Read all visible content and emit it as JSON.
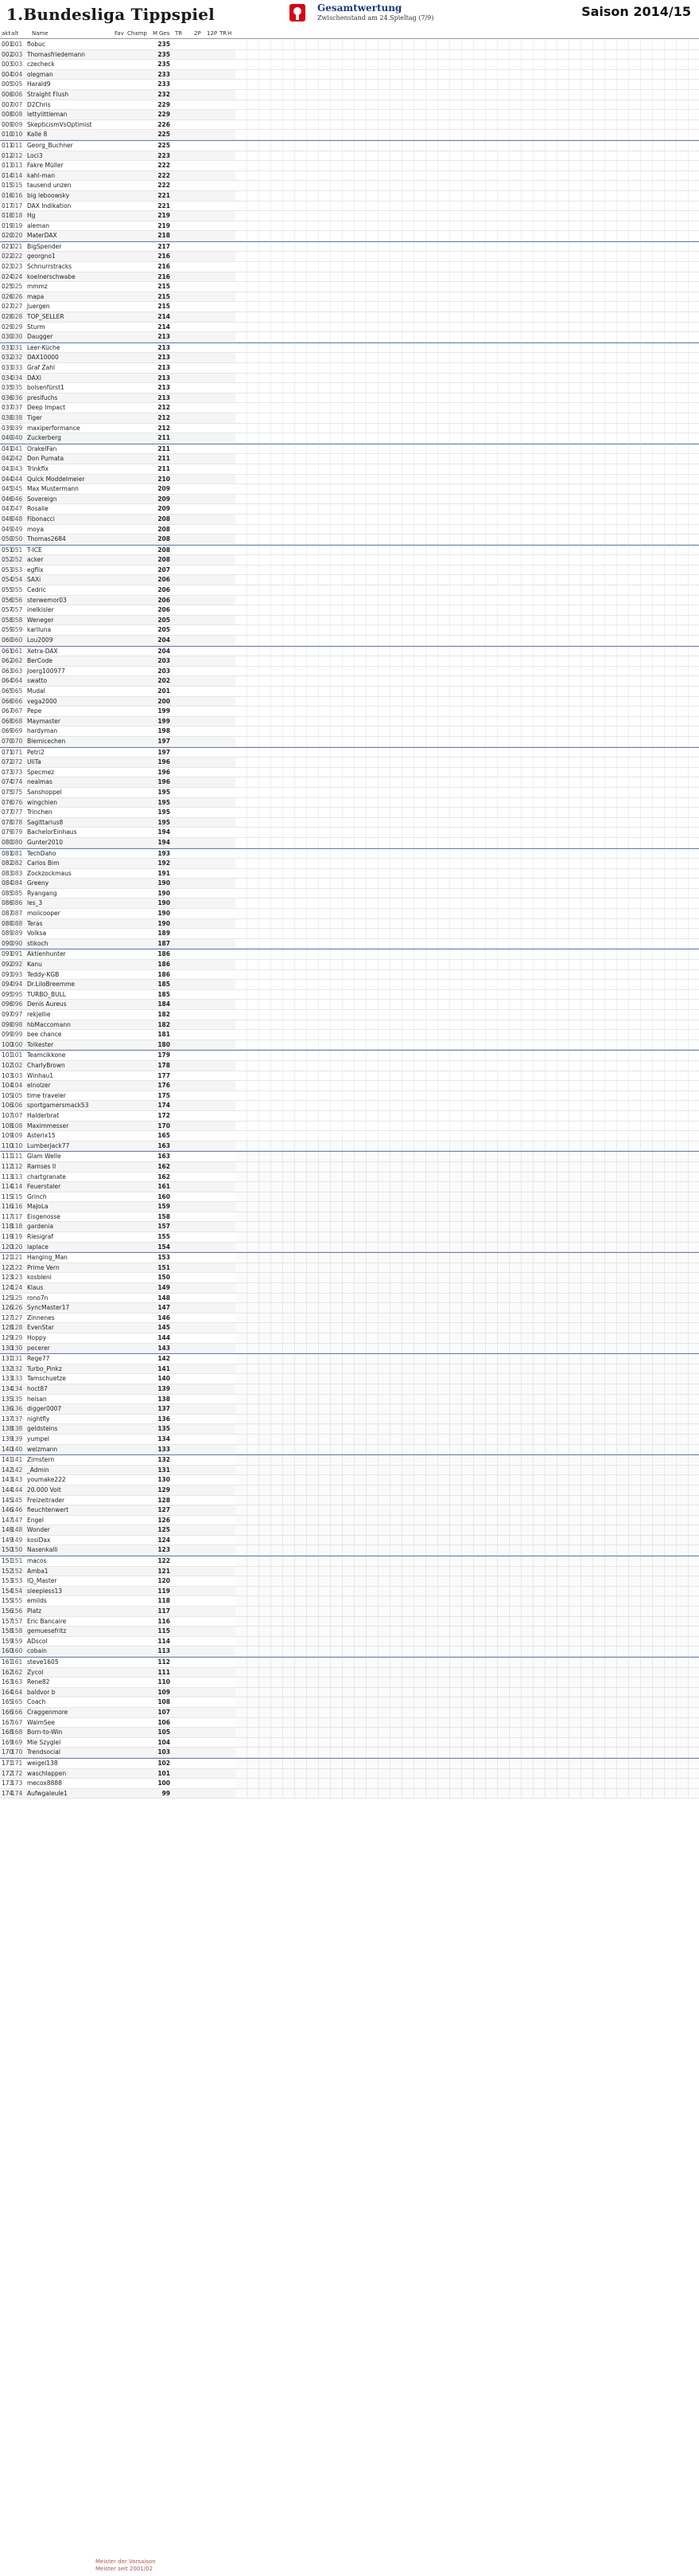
{
  "header": {
    "title": "1.Bundesliga Tippspiel",
    "subtitle": "Gesamtwertung",
    "status": "Zwischenstand am 24.Spieltag (7/9)",
    "season": "Saison 2014/15"
  },
  "columns": {
    "akt": "akt",
    "alt": "alt",
    "name": "Name",
    "fav": "Fav",
    "champ": "Champ",
    "m": "M",
    "ges": "Ges",
    "tr": "TR",
    "q": "Q",
    "tr2": "TR",
    "twop": "2P",
    "twelvep": "12P",
    "tr3": "TR",
    "h": "H"
  },
  "rows": [
    {
      "akt": "001",
      "alt": "001",
      "name": "flobuc",
      "ges": "235"
    },
    {
      "akt": "002",
      "alt": "003",
      "name": "Thomasfriedemann",
      "ges": "235"
    },
    {
      "akt": "003",
      "alt": "003",
      "name": "czecheck",
      "ges": "235"
    },
    {
      "akt": "004",
      "alt": "004",
      "name": "olegman",
      "ges": "233"
    },
    {
      "akt": "005",
      "alt": "005",
      "name": "Harald9",
      "ges": "233"
    },
    {
      "akt": "006",
      "alt": "006",
      "name": "Straight Flush",
      "ges": "232"
    },
    {
      "akt": "007",
      "alt": "007",
      "name": "D2Chris",
      "ges": "229"
    },
    {
      "akt": "008",
      "alt": "008",
      "name": "lettylittleman",
      "ges": "229"
    },
    {
      "akt": "009",
      "alt": "009",
      "name": "SkepticismVsOptimist",
      "ges": "226"
    },
    {
      "akt": "010",
      "alt": "010",
      "name": "Kalle 8",
      "ges": "225"
    },
    {
      "akt": "011",
      "alt": "011",
      "name": "Georg_Buchner",
      "ges": "225"
    },
    {
      "akt": "012",
      "alt": "012",
      "name": "Loci3",
      "ges": "223"
    },
    {
      "akt": "013",
      "alt": "013",
      "name": "Fakre Müller",
      "ges": "222"
    },
    {
      "akt": "014",
      "alt": "014",
      "name": "kahl-man",
      "ges": "222"
    },
    {
      "akt": "015",
      "alt": "015",
      "name": "tausend unzen",
      "ges": "222"
    },
    {
      "akt": "016",
      "alt": "016",
      "name": "big leboowsky",
      "ges": "221"
    },
    {
      "akt": "017",
      "alt": "017",
      "name": "DAX Indikation",
      "ges": "221"
    },
    {
      "akt": "018",
      "alt": "018",
      "name": "Hg",
      "ges": "219"
    },
    {
      "akt": "019",
      "alt": "019",
      "name": "aleman",
      "ges": "219"
    },
    {
      "akt": "020",
      "alt": "020",
      "name": "MaterDAX",
      "ges": "218"
    },
    {
      "akt": "021",
      "alt": "021",
      "name": "BigSpender",
      "ges": "217"
    },
    {
      "akt": "022",
      "alt": "022",
      "name": "georgno1",
      "ges": "216"
    },
    {
      "akt": "023",
      "alt": "023",
      "name": "Schnurrstracks",
      "ges": "216"
    },
    {
      "akt": "024",
      "alt": "024",
      "name": "koelnerschwabe",
      "ges": "216"
    },
    {
      "akt": "025",
      "alt": "025",
      "name": "mmmz",
      "ges": "215"
    },
    {
      "akt": "026",
      "alt": "026",
      "name": "mapa",
      "ges": "215"
    },
    {
      "akt": "027",
      "alt": "027",
      "name": "Juergen",
      "ges": "215"
    },
    {
      "akt": "028",
      "alt": "028",
      "name": "TOP_SELLER",
      "ges": "214"
    },
    {
      "akt": "029",
      "alt": "029",
      "name": "Sturm",
      "ges": "214"
    },
    {
      "akt": "030",
      "alt": "030",
      "name": "Daugger",
      "ges": "213"
    },
    {
      "akt": "031",
      "alt": "031",
      "name": "Leer-Küche",
      "ges": "213"
    },
    {
      "akt": "032",
      "alt": "032",
      "name": "DAX10000",
      "ges": "213"
    },
    {
      "akt": "033",
      "alt": "033",
      "name": "Graf Zahl",
      "ges": "213"
    },
    {
      "akt": "034",
      "alt": "034",
      "name": "DAXi",
      "ges": "213"
    },
    {
      "akt": "035",
      "alt": "035",
      "name": "bolsenfürst1",
      "ges": "213"
    },
    {
      "akt": "036",
      "alt": "036",
      "name": "presifuchs",
      "ges": "213"
    },
    {
      "akt": "037",
      "alt": "037",
      "name": "Deep Impact",
      "ges": "212"
    },
    {
      "akt": "038",
      "alt": "038",
      "name": "Tiger",
      "ges": "212"
    },
    {
      "akt": "039",
      "alt": "039",
      "name": "maxiperformance",
      "ges": "212"
    },
    {
      "akt": "040",
      "alt": "040",
      "name": "Zuckerberg",
      "ges": "211"
    },
    {
      "akt": "041",
      "alt": "041",
      "name": "OrakelFan",
      "ges": "211"
    },
    {
      "akt": "042",
      "alt": "042",
      "name": "Don Pumata",
      "ges": "211"
    },
    {
      "akt": "043",
      "alt": "043",
      "name": "Trinkfix",
      "ges": "211"
    },
    {
      "akt": "044",
      "alt": "044",
      "name": "Quick Moddelmeier",
      "ges": "210"
    },
    {
      "akt": "045",
      "alt": "045",
      "name": "Max Mustermann",
      "ges": "209"
    },
    {
      "akt": "046",
      "alt": "046",
      "name": "Sovereign",
      "ges": "209"
    },
    {
      "akt": "047",
      "alt": "047",
      "name": "Rosalie",
      "ges": "209"
    },
    {
      "akt": "048",
      "alt": "048",
      "name": "Fibonacci",
      "ges": "208"
    },
    {
      "akt": "049",
      "alt": "049",
      "name": "moya",
      "ges": "208"
    },
    {
      "akt": "050",
      "alt": "050",
      "name": "Thomas2684",
      "ges": "208"
    },
    {
      "akt": "051",
      "alt": "051",
      "name": "T-ICE",
      "ges": "208"
    },
    {
      "akt": "052",
      "alt": "052",
      "name": "acker",
      "ges": "208"
    },
    {
      "akt": "053",
      "alt": "053",
      "name": "egflix",
      "ges": "207"
    },
    {
      "akt": "054",
      "alt": "054",
      "name": "SAXi",
      "ges": "206"
    },
    {
      "akt": "055",
      "alt": "055",
      "name": "Cedric",
      "ges": "206"
    },
    {
      "akt": "056",
      "alt": "056",
      "name": "sterwemor03",
      "ges": "206"
    },
    {
      "akt": "057",
      "alt": "057",
      "name": "inelkisler",
      "ges": "206"
    },
    {
      "akt": "058",
      "alt": "058",
      "name": "Weneger",
      "ges": "205"
    },
    {
      "akt": "059",
      "alt": "059",
      "name": "karlluna",
      "ges": "205"
    },
    {
      "akt": "060",
      "alt": "060",
      "name": "Lou2009",
      "ges": "204"
    },
    {
      "akt": "061",
      "alt": "061",
      "name": "Xetra-DAX",
      "ges": "204"
    },
    {
      "akt": "062",
      "alt": "062",
      "name": "BerCode",
      "ges": "203"
    },
    {
      "akt": "063",
      "alt": "063",
      "name": "Joerg100977",
      "ges": "203"
    },
    {
      "akt": "064",
      "alt": "064",
      "name": "swatto",
      "ges": "202"
    },
    {
      "akt": "065",
      "alt": "065",
      "name": "Mudal",
      "ges": "201"
    },
    {
      "akt": "066",
      "alt": "066",
      "name": "vega2000",
      "ges": "200"
    },
    {
      "akt": "067",
      "alt": "067",
      "name": "Pepe",
      "ges": "199"
    },
    {
      "akt": "068",
      "alt": "068",
      "name": "Maymaster",
      "ges": "199"
    },
    {
      "akt": "069",
      "alt": "069",
      "name": "hardyman",
      "ges": "198"
    },
    {
      "akt": "070",
      "alt": "070",
      "name": "Blemicechen",
      "ges": "197"
    },
    {
      "akt": "071",
      "alt": "071",
      "name": "Petri2",
      "ges": "197"
    },
    {
      "akt": "072",
      "alt": "072",
      "name": "UliTa",
      "ges": "196"
    },
    {
      "akt": "073",
      "alt": "073",
      "name": "Specmez",
      "ges": "196"
    },
    {
      "akt": "074",
      "alt": "074",
      "name": "nealmas",
      "ges": "196"
    },
    {
      "akt": "075",
      "alt": "075",
      "name": "Sanshoppel",
      "ges": "195"
    },
    {
      "akt": "076",
      "alt": "076",
      "name": "wingchien",
      "ges": "195"
    },
    {
      "akt": "077",
      "alt": "077",
      "name": "Trinchen",
      "ges": "195"
    },
    {
      "akt": "078",
      "alt": "078",
      "name": "Sagittarius8",
      "ges": "195"
    },
    {
      "akt": "079",
      "alt": "079",
      "name": "BachelorEinhaus",
      "ges": "194"
    },
    {
      "akt": "080",
      "alt": "080",
      "name": "Gunter2010",
      "ges": "194"
    },
    {
      "akt": "081",
      "alt": "081",
      "name": "TechDaho",
      "ges": "193"
    },
    {
      "akt": "082",
      "alt": "082",
      "name": "Carlos Bim",
      "ges": "192"
    },
    {
      "akt": "083",
      "alt": "083",
      "name": "Zockzockmaus",
      "ges": "191"
    },
    {
      "akt": "084",
      "alt": "084",
      "name": "Greeny",
      "ges": "190"
    },
    {
      "akt": "085",
      "alt": "085",
      "name": "Ryangang",
      "ges": "190"
    },
    {
      "akt": "086",
      "alt": "086",
      "name": "les_3",
      "ges": "190"
    },
    {
      "akt": "087",
      "alt": "087",
      "name": "moiicooper",
      "ges": "190"
    },
    {
      "akt": "088",
      "alt": "088",
      "name": "Teras",
      "ges": "190"
    },
    {
      "akt": "089",
      "alt": "089",
      "name": "Volksa",
      "ges": "189"
    },
    {
      "akt": "090",
      "alt": "090",
      "name": "stikoch",
      "ges": "187"
    },
    {
      "akt": "091",
      "alt": "091",
      "name": "Aktienhunter",
      "ges": "186"
    },
    {
      "akt": "092",
      "alt": "092",
      "name": "Kanu",
      "ges": "186"
    },
    {
      "akt": "093",
      "alt": "093",
      "name": "Teddy-KGB",
      "ges": "186"
    },
    {
      "akt": "094",
      "alt": "094",
      "name": "Dr.LiloBreemme",
      "ges": "185"
    },
    {
      "akt": "095",
      "alt": "095",
      "name": "TURBO_BULL",
      "ges": "185"
    },
    {
      "akt": "096",
      "alt": "096",
      "name": "Denis Aureus",
      "ges": "184"
    },
    {
      "akt": "097",
      "alt": "097",
      "name": "rekjellie",
      "ges": "182"
    },
    {
      "akt": "098",
      "alt": "098",
      "name": "hbMaccomann",
      "ges": "182"
    },
    {
      "akt": "099",
      "alt": "099",
      "name": "bee chance",
      "ges": "181"
    },
    {
      "akt": "100",
      "alt": "100",
      "name": "Tolkester",
      "ges": "180"
    },
    {
      "akt": "101",
      "alt": "101",
      "name": "Teamcikkone",
      "ges": "179"
    },
    {
      "akt": "102",
      "alt": "102",
      "name": "CharlyBrown",
      "ges": "178"
    },
    {
      "akt": "103",
      "alt": "103",
      "name": "Winhau1",
      "ges": "177"
    },
    {
      "akt": "104",
      "alt": "104",
      "name": "elnolzer",
      "ges": "176"
    },
    {
      "akt": "105",
      "alt": "105",
      "name": "time traveler",
      "ges": "175"
    },
    {
      "akt": "106",
      "alt": "106",
      "name": "sportgamersmack53",
      "ges": "174"
    },
    {
      "akt": "107",
      "alt": "107",
      "name": "Halderbrat",
      "ges": "172"
    },
    {
      "akt": "108",
      "alt": "108",
      "name": "Maximmesser",
      "ges": "170"
    },
    {
      "akt": "109",
      "alt": "109",
      "name": "Asterix15",
      "ges": "165"
    },
    {
      "akt": "110",
      "alt": "110",
      "name": "Lumberjack77",
      "ges": "163"
    },
    {
      "akt": "111",
      "alt": "111",
      "name": "Glam Welle",
      "ges": "163"
    },
    {
      "akt": "112",
      "alt": "112",
      "name": "Ramses II",
      "ges": "162"
    },
    {
      "akt": "113",
      "alt": "113",
      "name": "chartgranate",
      "ges": "162"
    },
    {
      "akt": "114",
      "alt": "114",
      "name": "Feuerstaler",
      "ges": "161"
    },
    {
      "akt": "115",
      "alt": "115",
      "name": "Grinch",
      "ges": "160"
    },
    {
      "akt": "116",
      "alt": "116",
      "name": "MaJoLa",
      "ges": "159"
    },
    {
      "akt": "117",
      "alt": "117",
      "name": "Eisgenosse",
      "ges": "158"
    },
    {
      "akt": "118",
      "alt": "118",
      "name": "gardenia",
      "ges": "157"
    },
    {
      "akt": "119",
      "alt": "119",
      "name": "Riesigraf",
      "ges": "155"
    },
    {
      "akt": "120",
      "alt": "120",
      "name": "laplace",
      "ges": "154"
    },
    {
      "akt": "121",
      "alt": "121",
      "name": "Hanging_Man",
      "ges": "153"
    },
    {
      "akt": "122",
      "alt": "122",
      "name": "Prime Vern",
      "ges": "151"
    },
    {
      "akt": "123",
      "alt": "123",
      "name": "kosbleni",
      "ges": "150"
    },
    {
      "akt": "124",
      "alt": "124",
      "name": "Klaus",
      "ges": "149"
    },
    {
      "akt": "125",
      "alt": "125",
      "name": "rono7n",
      "ges": "148"
    },
    {
      "akt": "126",
      "alt": "126",
      "name": "SyncMaster17",
      "ges": "147"
    },
    {
      "akt": "127",
      "alt": "127",
      "name": "Zinnenes",
      "ges": "146"
    },
    {
      "akt": "128",
      "alt": "128",
      "name": "EvenStar",
      "ges": "145"
    },
    {
      "akt": "129",
      "alt": "129",
      "name": "Hoppy",
      "ges": "144"
    },
    {
      "akt": "130",
      "alt": "130",
      "name": "pecerer",
      "ges": "143"
    },
    {
      "akt": "131",
      "alt": "131",
      "name": "Rege77",
      "ges": "142"
    },
    {
      "akt": "132",
      "alt": "132",
      "name": "Turbo_Pinkz",
      "ges": "141"
    },
    {
      "akt": "133",
      "alt": "133",
      "name": "Tamschuetze",
      "ges": "140"
    },
    {
      "akt": "134",
      "alt": "134",
      "name": "hoct87",
      "ges": "139"
    },
    {
      "akt": "135",
      "alt": "135",
      "name": "heisan",
      "ges": "138"
    },
    {
      "akt": "136",
      "alt": "136",
      "name": "digger0007",
      "ges": "137"
    },
    {
      "akt": "137",
      "alt": "137",
      "name": "nightfly",
      "ges": "136"
    },
    {
      "akt": "138",
      "alt": "138",
      "name": "geldsteins",
      "ges": "135"
    },
    {
      "akt": "139",
      "alt": "139",
      "name": "yumpel",
      "ges": "134"
    },
    {
      "akt": "140",
      "alt": "140",
      "name": "welzmann",
      "ges": "133"
    },
    {
      "akt": "141",
      "alt": "141",
      "name": "Zirnstern",
      "ges": "132"
    },
    {
      "akt": "142",
      "alt": "142",
      "name": "_Admin",
      "ges": "131"
    },
    {
      "akt": "143",
      "alt": "143",
      "name": "youmake222",
      "ges": "130"
    },
    {
      "akt": "144",
      "alt": "144",
      "name": "20.000 Volt",
      "ges": "129"
    },
    {
      "akt": "145",
      "alt": "145",
      "name": "Freizeitrader",
      "ges": "128"
    },
    {
      "akt": "146",
      "alt": "146",
      "name": "fieuchtenwert",
      "ges": "127"
    },
    {
      "akt": "147",
      "alt": "147",
      "name": "Engel",
      "ges": "126"
    },
    {
      "akt": "148",
      "alt": "148",
      "name": "Wonder",
      "ges": "125"
    },
    {
      "akt": "149",
      "alt": "149",
      "name": "kosiDax",
      "ges": "124"
    },
    {
      "akt": "150",
      "alt": "150",
      "name": "Nasenkalli",
      "ges": "123"
    },
    {
      "akt": "151",
      "alt": "151",
      "name": "macos",
      "ges": "122"
    },
    {
      "akt": "152",
      "alt": "152",
      "name": "Amba1",
      "ges": "121"
    },
    {
      "akt": "153",
      "alt": "153",
      "name": "IQ_Master",
      "ges": "120"
    },
    {
      "akt": "154",
      "alt": "154",
      "name": "sleepless13",
      "ges": "119"
    },
    {
      "akt": "155",
      "alt": "155",
      "name": "emilds",
      "ges": "118"
    },
    {
      "akt": "156",
      "alt": "156",
      "name": "Platz",
      "ges": "117"
    },
    {
      "akt": "157",
      "alt": "157",
      "name": "Eric Bancaire",
      "ges": "116"
    },
    {
      "akt": "158",
      "alt": "158",
      "name": "gemuesefritz",
      "ges": "115"
    },
    {
      "akt": "159",
      "alt": "159",
      "name": "ADscol",
      "ges": "114"
    },
    {
      "akt": "160",
      "alt": "160",
      "name": "cobain",
      "ges": "113"
    },
    {
      "akt": "161",
      "alt": "161",
      "name": "steve1605",
      "ges": "112"
    },
    {
      "akt": "162",
      "alt": "162",
      "name": "Zycol",
      "ges": "111"
    },
    {
      "akt": "163",
      "alt": "163",
      "name": "Rene82",
      "ges": "110"
    },
    {
      "akt": "164",
      "alt": "164",
      "name": "baldvor b",
      "ges": "109"
    },
    {
      "akt": "165",
      "alt": "165",
      "name": "Coach",
      "ges": "108"
    },
    {
      "akt": "166",
      "alt": "166",
      "name": "Craggenmore",
      "ges": "107"
    },
    {
      "akt": "167",
      "alt": "167",
      "name": "WaimSee",
      "ges": "106"
    },
    {
      "akt": "168",
      "alt": "168",
      "name": "Born-to-Win",
      "ges": "105"
    },
    {
      "akt": "169",
      "alt": "169",
      "name": "Mie Szyglel",
      "ges": "104"
    },
    {
      "akt": "170",
      "alt": "170",
      "name": "Trendsocial",
      "ges": "103"
    },
    {
      "akt": "171",
      "alt": "171",
      "name": "weigel138",
      "ges": "102"
    },
    {
      "akt": "172",
      "alt": "172",
      "name": "waschlappen",
      "ges": "101"
    },
    {
      "akt": "173",
      "alt": "173",
      "name": "mecox8888",
      "ges": "100"
    },
    {
      "akt": "174",
      "alt": "174",
      "name": "Aufwgaleule1",
      "ges": "99"
    }
  ],
  "footer": {
    "line1": "Meister der Vorsaison",
    "line2": "Meister seit 2001/02"
  },
  "colors": {
    "accent": "#d78a2a",
    "separator": "#6a7fb5",
    "title": "#1d3a7a"
  }
}
